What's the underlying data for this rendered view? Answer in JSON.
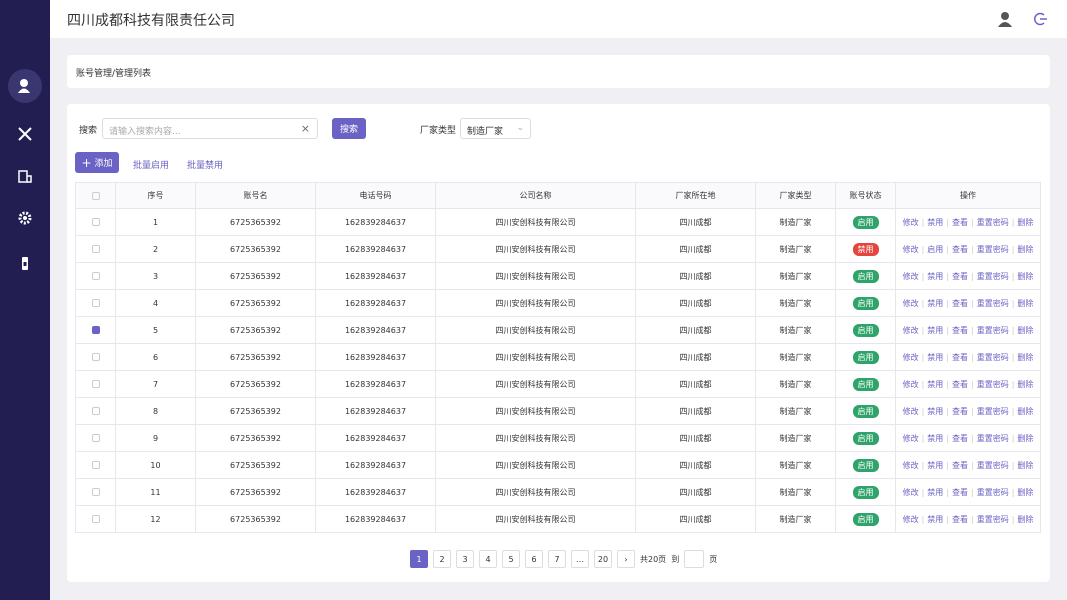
{
  "header": {
    "title": "四川成都科技有限责任公司"
  },
  "breadcrumb": "账号管理/管理列表",
  "search": {
    "label": "搜索",
    "placeholder": "请输入搜索内容...",
    "button": "搜索",
    "filter_label": "厂家类型",
    "filter_value": "制造厂家"
  },
  "toolbar": {
    "add": "添加",
    "enable": "批量启用",
    "disable": "批量禁用"
  },
  "table": {
    "columns": [
      "序号",
      "账号名",
      "电话号码",
      "公司名称",
      "厂家所在地",
      "厂家类型",
      "账号状态",
      "操作"
    ],
    "rows": [
      {
        "cells": [
          "1",
          "6725365392",
          "162839284637",
          "四川安创科技有限公司",
          "四川成都",
          "制造厂家"
        ],
        "status": "启用",
        "checked": false,
        "actions": [
          "修改",
          "禁用",
          "查看",
          "重置密码",
          "删除"
        ]
      },
      {
        "cells": [
          "2",
          "6725365392",
          "162839284637",
          "四川安创科技有限公司",
          "四川成都",
          "制造厂家"
        ],
        "status": "禁用",
        "checked": false,
        "actions": [
          "修改",
          "启用",
          "查看",
          "重置密码",
          "删除"
        ]
      },
      {
        "cells": [
          "3",
          "6725365392",
          "162839284637",
          "四川安创科技有限公司",
          "四川成都",
          "制造厂家"
        ],
        "status": "启用",
        "checked": false,
        "actions": [
          "修改",
          "禁用",
          "查看",
          "重置密码",
          "删除"
        ]
      },
      {
        "cells": [
          "4",
          "6725365392",
          "162839284637",
          "四川安创科技有限公司",
          "四川成都",
          "制造厂家"
        ],
        "status": "启用",
        "checked": false,
        "actions": [
          "修改",
          "禁用",
          "查看",
          "重置密码",
          "删除"
        ]
      },
      {
        "cells": [
          "5",
          "6725365392",
          "162839284637",
          "四川安创科技有限公司",
          "四川成都",
          "制造厂家"
        ],
        "status": "启用",
        "checked": true,
        "actions": [
          "修改",
          "禁用",
          "查看",
          "重置密码",
          "删除"
        ]
      },
      {
        "cells": [
          "6",
          "6725365392",
          "162839284637",
          "四川安创科技有限公司",
          "四川成都",
          "制造厂家"
        ],
        "status": "启用",
        "checked": false,
        "actions": [
          "修改",
          "禁用",
          "查看",
          "重置密码",
          "删除"
        ]
      },
      {
        "cells": [
          "7",
          "6725365392",
          "162839284637",
          "四川安创科技有限公司",
          "四川成都",
          "制造厂家"
        ],
        "status": "启用",
        "checked": false,
        "actions": [
          "修改",
          "禁用",
          "查看",
          "重置密码",
          "删除"
        ]
      },
      {
        "cells": [
          "8",
          "6725365392",
          "162839284637",
          "四川安创科技有限公司",
          "四川成都",
          "制造厂家"
        ],
        "status": "启用",
        "checked": false,
        "actions": [
          "修改",
          "禁用",
          "查看",
          "重置密码",
          "删除"
        ]
      },
      {
        "cells": [
          "9",
          "6725365392",
          "162839284637",
          "四川安创科技有限公司",
          "四川成都",
          "制造厂家"
        ],
        "status": "启用",
        "checked": false,
        "actions": [
          "修改",
          "禁用",
          "查看",
          "重置密码",
          "删除"
        ]
      },
      {
        "cells": [
          "10",
          "6725365392",
          "162839284637",
          "四川安创科技有限公司",
          "四川成都",
          "制造厂家"
        ],
        "status": "启用",
        "checked": false,
        "actions": [
          "修改",
          "禁用",
          "查看",
          "重置密码",
          "删除"
        ]
      },
      {
        "cells": [
          "11",
          "6725365392",
          "162839284637",
          "四川安创科技有限公司",
          "四川成都",
          "制造厂家"
        ],
        "status": "启用",
        "checked": false,
        "actions": [
          "修改",
          "禁用",
          "查看",
          "重置密码",
          "删除"
        ]
      },
      {
        "cells": [
          "12",
          "6725365392",
          "162839284637",
          "四川安创科技有限公司",
          "四川成都",
          "制造厂家"
        ],
        "status": "启用",
        "checked": false,
        "actions": [
          "修改",
          "禁用",
          "查看",
          "重置密码",
          "删除"
        ]
      }
    ]
  },
  "pagination": {
    "pages": [
      "1",
      "2",
      "3",
      "4",
      "5",
      "6",
      "7",
      "…",
      "20"
    ],
    "current": "1",
    "total": "共20页",
    "goto": "到",
    "unit": "页"
  }
}
